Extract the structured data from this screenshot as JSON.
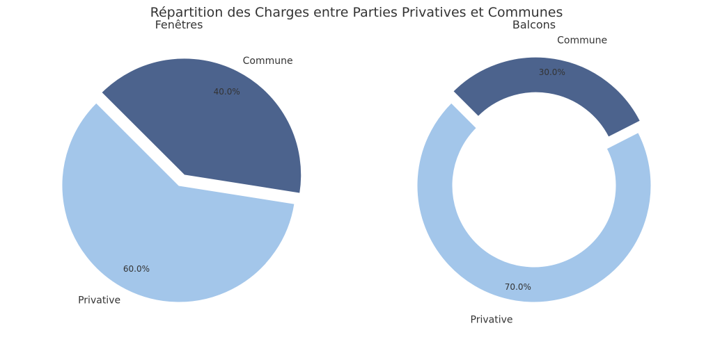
{
  "figure": {
    "title": "Répartition des Charges entre Parties Privatives et Communes"
  },
  "chart_data": [
    {
      "type": "pie",
      "title": "Fenêtres",
      "categories": [
        "Commune",
        "Privative"
      ],
      "values": [
        40.0,
        60.0
      ],
      "value_labels": [
        "40.0%",
        "60.0%"
      ],
      "colors": [
        "#4c638d",
        "#a3c6ea"
      ],
      "exploded": [
        true,
        false
      ],
      "donut": false
    },
    {
      "type": "pie",
      "title": "Balcons",
      "categories": [
        "Commune",
        "Privative"
      ],
      "values": [
        30.0,
        70.0
      ],
      "value_labels": [
        "30.0%",
        "70.0%"
      ],
      "colors": [
        "#4c638d",
        "#a3c6ea"
      ],
      "exploded": [
        true,
        false
      ],
      "donut": true
    }
  ]
}
